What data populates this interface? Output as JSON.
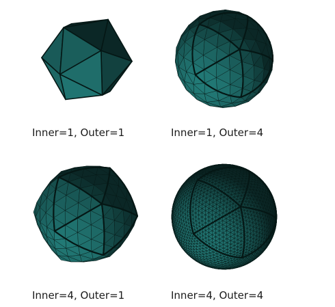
{
  "figure": {
    "colors": {
      "base": "#1f6f6c",
      "dark": "#0d3a38",
      "light": "#3b9a95",
      "edge": "#051715",
      "background": "#ffffff"
    },
    "panels": [
      {
        "caption": "Inner=1, Outer=1",
        "inner": 1,
        "outer": 1
      },
      {
        "caption": "Inner=1, Outer=4",
        "inner": 1,
        "outer": 4
      },
      {
        "caption": "Inner=4, Outer=1",
        "inner": 4,
        "outer": 1
      },
      {
        "caption": "Inner=4, Outer=4",
        "inner": 4,
        "outer": 4
      }
    ]
  }
}
